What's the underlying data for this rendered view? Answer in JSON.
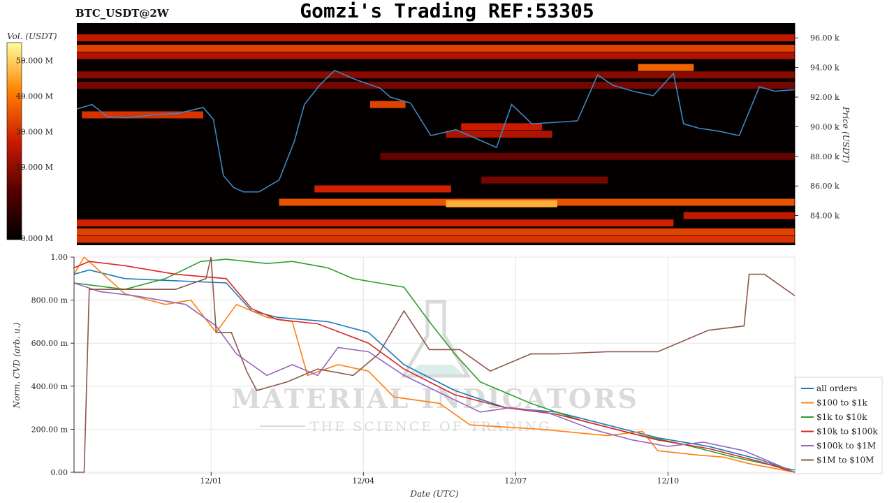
{
  "page": {
    "title": "Gomzi's Trading REF:53305",
    "symbol": "BTC_USDT@2W"
  },
  "watermark": {
    "brand": "MATERIAL INDICATORS",
    "tagline": "THE SCIENCE OF TRADING"
  },
  "colors": {
    "price_line": "#3a87c8",
    "heat_low": "#000000",
    "heat_high": "#ffff66"
  },
  "chart_data": [
    {
      "type": "heatmap",
      "title": "",
      "colorbar": {
        "label": "Vol. (USDT)",
        "ticks": [
          "0.000 M",
          "20.000 M",
          "30.000 M",
          "40.000 M",
          "50.000 M"
        ],
        "values": [
          0,
          20,
          30,
          40,
          50
        ]
      },
      "ylabel": "Price (USDT)",
      "yticks": [
        "84.00 k",
        "86.00 k",
        "88.00 k",
        "90.00 k",
        "92.00 k",
        "94.00 k",
        "96.00 k"
      ],
      "ytick_values": [
        84,
        86,
        88,
        90,
        92,
        94,
        96
      ],
      "ylim": [
        82.0,
        97.0
      ],
      "xlim": [
        0,
        14.2
      ],
      "price_series": {
        "name": "price",
        "x": [
          0,
          0.3,
          0.6,
          1,
          1.5,
          2,
          2.5,
          2.7,
          2.9,
          3.1,
          3.3,
          3.6,
          4,
          4.3,
          4.5,
          4.8,
          5.1,
          5.5,
          6,
          6.2,
          6.6,
          7,
          7.5,
          7.9,
          8.3,
          8.6,
          9,
          9.5,
          9.9,
          10.3,
          10.6,
          11,
          11.4,
          11.8,
          12,
          12.3,
          12.7,
          13.1,
          13.5,
          13.8,
          14.2
        ],
        "y": [
          91.2,
          91.5,
          90.7,
          90.6,
          90.8,
          90.9,
          91.3,
          90.5,
          86.7,
          85.9,
          85.6,
          85.6,
          86.4,
          89.0,
          91.5,
          92.8,
          93.8,
          93.2,
          92.6,
          92.0,
          91.6,
          89.4,
          89.8,
          89.2,
          88.6,
          91.5,
          90.2,
          90.3,
          90.4,
          93.5,
          92.8,
          92.4,
          92.1,
          93.6,
          90.2,
          89.9,
          89.7,
          89.4,
          92.7,
          92.4,
          92.5
        ]
      },
      "heat_bands": [
        {
          "price": 96.0,
          "start": 0.0,
          "end": 14.2,
          "vol": 24
        },
        {
          "price": 95.3,
          "start": 0.0,
          "end": 14.2,
          "vol": 30
        },
        {
          "price": 94.8,
          "start": 0.0,
          "end": 14.2,
          "vol": 22
        },
        {
          "price": 94.0,
          "start": 11.1,
          "end": 12.2,
          "vol": 34
        },
        {
          "price": 93.5,
          "start": 0.0,
          "end": 14.2,
          "vol": 18
        },
        {
          "price": 92.8,
          "start": 0.0,
          "end": 14.2,
          "vol": 16
        },
        {
          "price": 91.5,
          "start": 5.8,
          "end": 6.5,
          "vol": 30
        },
        {
          "price": 90.8,
          "start": 0.1,
          "end": 2.5,
          "vol": 28
        },
        {
          "price": 90.0,
          "start": 7.6,
          "end": 9.2,
          "vol": 25
        },
        {
          "price": 89.5,
          "start": 7.3,
          "end": 9.4,
          "vol": 22
        },
        {
          "price": 88.0,
          "start": 6.0,
          "end": 14.2,
          "vol": 14
        },
        {
          "price": 86.4,
          "start": 8.0,
          "end": 10.5,
          "vol": 16
        },
        {
          "price": 85.8,
          "start": 4.7,
          "end": 7.4,
          "vol": 26
        },
        {
          "price": 84.9,
          "start": 4.0,
          "end": 14.2,
          "vol": 32
        },
        {
          "price": 84.8,
          "start": 7.3,
          "end": 9.5,
          "vol": 42
        },
        {
          "price": 84.0,
          "start": 12.0,
          "end": 14.2,
          "vol": 24
        },
        {
          "price": 83.5,
          "start": 0.0,
          "end": 11.8,
          "vol": 26
        },
        {
          "price": 82.9,
          "start": 0.0,
          "end": 14.2,
          "vol": 30
        },
        {
          "price": 82.4,
          "start": 0.0,
          "end": 14.2,
          "vol": 28
        }
      ]
    },
    {
      "type": "line",
      "title": "",
      "xlabel": "Date (UTC)",
      "ylabel": "Norm. CVD (arb. u.)",
      "categories": [
        "12/01",
        "12/04",
        "12/07",
        "12/10"
      ],
      "category_positions": [
        2.7,
        5.7,
        8.7,
        11.7
      ],
      "xlim": [
        0,
        14.2
      ],
      "ylim": [
        0,
        1.0
      ],
      "yticks": [
        "0.00",
        "200.00 m",
        "400.00 m",
        "600.00 m",
        "800.00 m",
        "1.00"
      ],
      "ytick_values": [
        0,
        0.2,
        0.4,
        0.6,
        0.8,
        1.0
      ],
      "grid": true,
      "legend_position": "bottom-right",
      "series": [
        {
          "name": "all orders",
          "color": "#1f77b4",
          "x": [
            0,
            0.3,
            1,
            2,
            3,
            3.5,
            4,
            5,
            5.8,
            6.5,
            7.5,
            8.5,
            9.5,
            10.5,
            11.5,
            12.5,
            13.5,
            14.2
          ],
          "y": [
            0.92,
            0.94,
            0.9,
            0.89,
            0.88,
            0.75,
            0.72,
            0.7,
            0.65,
            0.5,
            0.38,
            0.3,
            0.28,
            0.22,
            0.16,
            0.12,
            0.06,
            0.0
          ]
        },
        {
          "name": "$100 to $1k",
          "color": "#ff7f0e",
          "x": [
            0,
            0.2,
            1,
            1.8,
            2.3,
            2.8,
            3.2,
            3.8,
            4.3,
            4.6,
            5.2,
            5.8,
            6.3,
            7.2,
            7.8,
            8.5,
            9.2,
            10.5,
            11.2,
            11.5,
            12.3,
            12.8,
            13.3,
            14.2
          ],
          "y": [
            0.92,
            1.0,
            0.83,
            0.78,
            0.8,
            0.65,
            0.78,
            0.72,
            0.7,
            0.45,
            0.5,
            0.47,
            0.35,
            0.32,
            0.22,
            0.21,
            0.2,
            0.17,
            0.19,
            0.1,
            0.08,
            0.07,
            0.04,
            0.0
          ]
        },
        {
          "name": "$1k to $10k",
          "color": "#2ca02c",
          "x": [
            0,
            1,
            1.8,
            2.5,
            3.0,
            3.8,
            4.3,
            5.0,
            5.5,
            6.0,
            6.5,
            7.0,
            7.5,
            8.0,
            9.0,
            10.0,
            11.0,
            12.0,
            13.0,
            14.2
          ],
          "y": [
            0.88,
            0.85,
            0.9,
            0.98,
            0.99,
            0.97,
            0.98,
            0.95,
            0.9,
            0.88,
            0.86,
            0.7,
            0.55,
            0.42,
            0.32,
            0.24,
            0.18,
            0.13,
            0.07,
            0.01
          ]
        },
        {
          "name": "$10k to $100k",
          "color": "#d62728",
          "x": [
            0,
            0.3,
            1,
            2,
            3,
            3.5,
            4,
            4.8,
            5.8,
            6.5,
            7.5,
            8.5,
            9.5,
            10.5,
            11.5,
            12.5,
            13.5,
            14.2
          ],
          "y": [
            0.95,
            0.98,
            0.96,
            0.92,
            0.9,
            0.76,
            0.71,
            0.69,
            0.6,
            0.48,
            0.36,
            0.3,
            0.27,
            0.21,
            0.15,
            0.11,
            0.05,
            0.0
          ]
        },
        {
          "name": "$100k to $1M",
          "color": "#9467bd",
          "x": [
            0,
            0.5,
            1.2,
            2.2,
            2.8,
            3.2,
            3.8,
            4.3,
            4.8,
            5.2,
            5.8,
            6.5,
            7.2,
            8.0,
            8.6,
            9.3,
            10.2,
            11.0,
            11.7,
            12.4,
            13.2,
            14.2
          ],
          "y": [
            0.88,
            0.84,
            0.82,
            0.78,
            0.68,
            0.55,
            0.45,
            0.5,
            0.45,
            0.58,
            0.56,
            0.45,
            0.37,
            0.28,
            0.3,
            0.28,
            0.2,
            0.15,
            0.12,
            0.14,
            0.1,
            0.0
          ]
        },
        {
          "name": "$1M to $10M",
          "color": "#8c564b",
          "x": [
            0,
            0.1,
            0.2,
            0.3,
            1.0,
            2.0,
            2.6,
            2.7,
            2.8,
            3.1,
            3.4,
            3.6,
            4.2,
            4.8,
            5.5,
            6.0,
            6.5,
            7.0,
            7.6,
            8.2,
            9.0,
            9.5,
            10.5,
            11.5,
            12.5,
            13.2,
            13.3,
            13.6,
            14.2
          ],
          "y": [
            0.0,
            0.0,
            0.0,
            0.85,
            0.85,
            0.85,
            0.9,
            1.0,
            0.65,
            0.65,
            0.47,
            0.38,
            0.42,
            0.48,
            0.45,
            0.55,
            0.75,
            0.57,
            0.57,
            0.47,
            0.55,
            0.55,
            0.56,
            0.56,
            0.66,
            0.68,
            0.92,
            0.92,
            0.82
          ]
        }
      ]
    }
  ]
}
